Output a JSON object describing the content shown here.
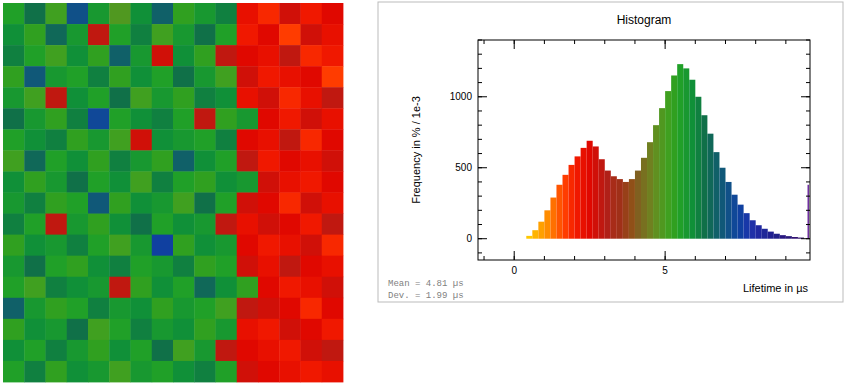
{
  "chart_data": [
    {
      "type": "heatmap",
      "tick_labels": false,
      "cells": [
        [
          5.4,
          6.2,
          5.0,
          7.0,
          5.6,
          4.8,
          5.8,
          6.6,
          5.2,
          5.6,
          6.0,
          2.2,
          1.8,
          2.6,
          2.0,
          2.4
        ],
        [
          5.8,
          5.2,
          6.4,
          5.6,
          2.8,
          5.4,
          6.0,
          5.0,
          5.6,
          6.2,
          5.4,
          2.0,
          2.4,
          1.6,
          2.6,
          2.2
        ],
        [
          6.0,
          5.4,
          5.0,
          5.8,
          5.2,
          6.6,
          5.6,
          2.6,
          5.8,
          5.2,
          2.8,
          2.4,
          2.2,
          2.8,
          1.8,
          2.0
        ],
        [
          5.2,
          6.8,
          5.6,
          5.4,
          6.0,
          5.2,
          5.8,
          5.4,
          6.2,
          5.6,
          5.0,
          2.6,
          2.0,
          2.2,
          2.4,
          1.6
        ],
        [
          5.6,
          5.0,
          2.8,
          5.8,
          5.4,
          6.2,
          5.0,
          5.6,
          5.2,
          6.0,
          5.8,
          2.2,
          2.6,
          1.8,
          2.2,
          2.8
        ],
        [
          6.2,
          5.6,
          5.2,
          6.0,
          7.2,
          5.4,
          5.8,
          6.0,
          5.4,
          2.8,
          5.2,
          5.6,
          2.4,
          2.0,
          2.6,
          2.2
        ],
        [
          5.4,
          5.8,
          6.0,
          5.2,
          5.6,
          5.0,
          2.6,
          5.8,
          5.6,
          5.4,
          6.0,
          2.4,
          2.2,
          2.8,
          1.8,
          2.4
        ],
        [
          5.0,
          6.4,
          5.4,
          5.8,
          5.2,
          6.0,
          5.6,
          5.2,
          6.6,
          5.8,
          5.4,
          2.8,
          2.0,
          2.4,
          2.2,
          2.6
        ],
        [
          5.8,
          5.2,
          5.6,
          6.2,
          5.4,
          5.8,
          5.0,
          6.0,
          5.4,
          5.2,
          5.8,
          5.6,
          2.6,
          2.2,
          2.0,
          2.4
        ],
        [
          5.6,
          6.0,
          5.2,
          5.4,
          6.8,
          5.2,
          5.8,
          5.6,
          5.0,
          6.2,
          5.4,
          2.6,
          2.4,
          1.8,
          2.6,
          2.2
        ],
        [
          6.0,
          5.4,
          2.8,
          5.6,
          5.2,
          5.8,
          6.2,
          5.4,
          5.8,
          5.6,
          2.8,
          2.2,
          2.6,
          2.4,
          2.0,
          2.8
        ],
        [
          5.2,
          5.8,
          5.6,
          6.0,
          5.4,
          5.0,
          5.6,
          7.4,
          5.2,
          5.8,
          5.6,
          2.4,
          2.0,
          2.2,
          2.6,
          1.8
        ],
        [
          5.6,
          6.2,
          5.4,
          5.2,
          5.8,
          6.0,
          5.4,
          5.6,
          6.0,
          5.2,
          5.4,
          2.6,
          2.2,
          2.8,
          2.4,
          2.2
        ],
        [
          5.4,
          5.0,
          6.0,
          5.8,
          5.6,
          2.8,
          5.2,
          5.8,
          5.4,
          6.4,
          5.8,
          5.2,
          2.4,
          2.0,
          2.2,
          2.6
        ],
        [
          6.6,
          5.6,
          5.2,
          5.4,
          6.0,
          5.6,
          5.8,
          5.2,
          5.6,
          5.4,
          5.0,
          2.8,
          2.6,
          2.4,
          1.8,
          2.4
        ],
        [
          5.2,
          5.8,
          5.6,
          6.2,
          5.0,
          5.4,
          6.0,
          5.6,
          5.8,
          5.2,
          5.6,
          2.2,
          2.0,
          2.6,
          2.4,
          2.0
        ],
        [
          5.8,
          5.4,
          6.0,
          5.6,
          5.2,
          5.8,
          5.4,
          6.2,
          5.0,
          5.6,
          2.8,
          2.4,
          2.2,
          2.0,
          2.6,
          2.8
        ],
        [
          5.4,
          6.0,
          5.2,
          5.8,
          5.6,
          5.0,
          5.6,
          5.4,
          5.8,
          6.0,
          5.4,
          2.6,
          2.4,
          2.2,
          2.0,
          2.2
        ]
      ]
    },
    {
      "type": "histogram",
      "title": "Histogram",
      "x_label": "Lifetime in µs",
      "y_label": "Frequency in % / 1e-3",
      "annotations": [
        "Mean = 4.81 µs",
        "Dev. = 1.99 µs"
      ],
      "bins": [
        0.4,
        0.6,
        0.8,
        1.0,
        1.2,
        1.4,
        1.6,
        1.8,
        2.0,
        2.2,
        2.4,
        2.6,
        2.8,
        3.0,
        3.2,
        3.4,
        3.6,
        3.8,
        4.0,
        4.2,
        4.4,
        4.6,
        4.8,
        5.0,
        5.2,
        5.4,
        5.6,
        5.8,
        6.0,
        6.2,
        6.4,
        6.6,
        6.8,
        7.0,
        7.2,
        7.4,
        7.6,
        7.8,
        8.0,
        8.2,
        8.4,
        8.6,
        8.8,
        9.0,
        9.2,
        9.4,
        9.6
      ],
      "values": [
        20,
        60,
        120,
        200,
        290,
        380,
        450,
        520,
        580,
        640,
        690,
        650,
        560,
        480,
        440,
        420,
        400,
        420,
        480,
        570,
        680,
        800,
        920,
        1040,
        1150,
        1230,
        1200,
        1120,
        1000,
        870,
        740,
        610,
        500,
        400,
        310,
        240,
        180,
        130,
        95,
        70,
        50,
        35,
        25,
        18,
        12,
        8
      ],
      "colors": [
        "#ffc800",
        "#ffb400",
        "#ffa000",
        "#ff8c00",
        "#ff7000",
        "#ff5400",
        "#ff3c00",
        "#f82800",
        "#f01800",
        "#e81000",
        "#e00800",
        "#d01008",
        "#c01810",
        "#b02018",
        "#a82c18",
        "#a03018",
        "#984018",
        "#905018",
        "#806020",
        "#787020",
        "#708020",
        "#609020",
        "#509820",
        "#40a020",
        "#30a020",
        "#20a028",
        "#189830",
        "#109038",
        "#108040",
        "#107048",
        "#106858",
        "#106068",
        "#105878",
        "#105088",
        "#104898",
        "#1040a0",
        "#1838a8",
        "#2030a8",
        "#2028a0",
        "#202898",
        "#202090",
        "#202088",
        "#281880",
        "#281878",
        "#301070",
        "#301068"
      ],
      "overflow": 380,
      "xlim": [
        -1.2,
        9.8
      ],
      "xticks": [
        0,
        5
      ],
      "ylim": [
        -150,
        1400
      ],
      "yticks": [
        0,
        500,
        1000
      ],
      "grid": false
    }
  ]
}
